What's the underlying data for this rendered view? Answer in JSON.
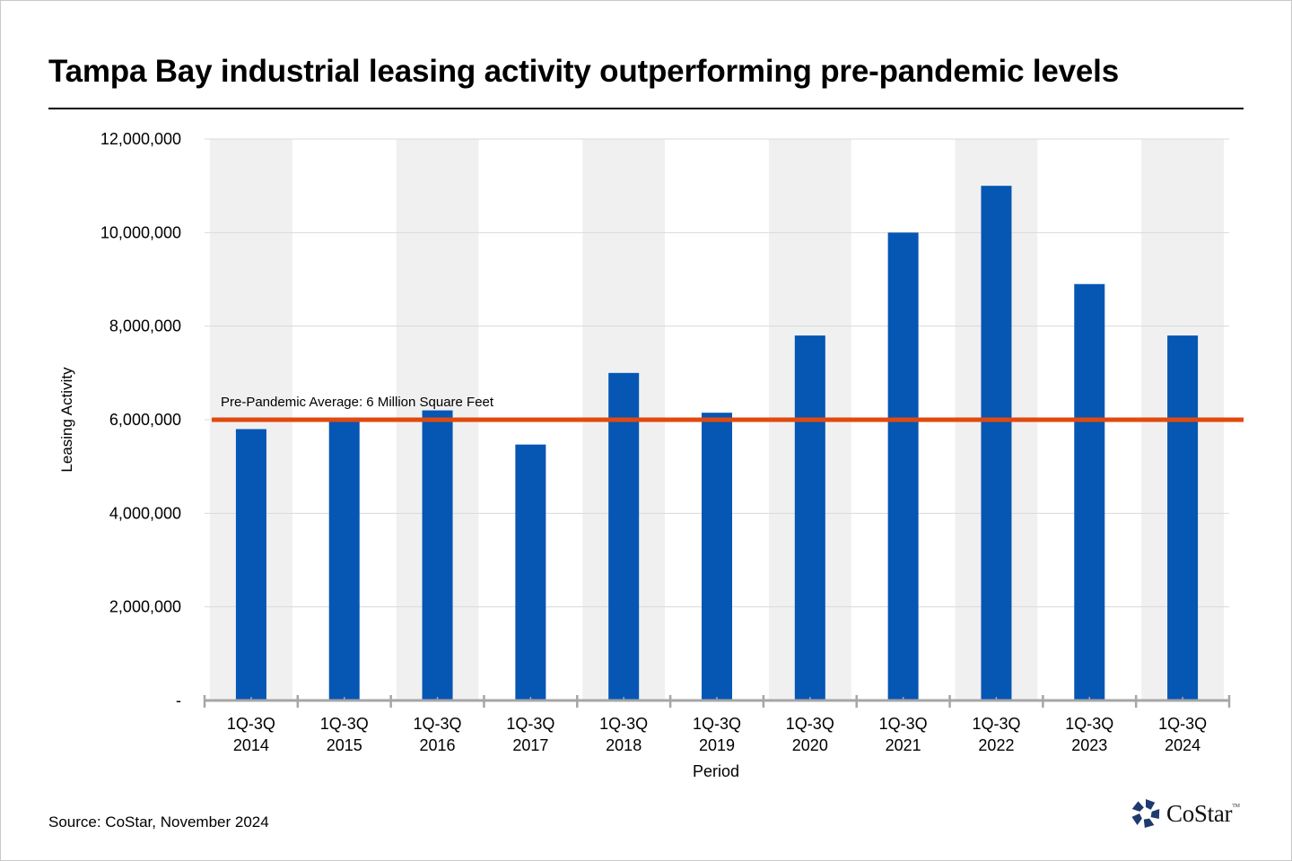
{
  "title": "Tampa Bay industrial leasing activity outperforming pre-pandemic levels",
  "source": "Source: CoStar, November 2024",
  "logo": {
    "name": "CoStar",
    "tm": "TM",
    "icon": "costar-star-icon",
    "color": "#1f3a6e"
  },
  "colors": {
    "bar": "#0656b4",
    "reference_line": "#e04a0f",
    "band": "#f0f0f0",
    "gridline": "#d9d9d9",
    "axis": "#a6a6a6"
  },
  "chart_data": {
    "type": "bar",
    "title": "Tampa Bay industrial leasing activity outperforming pre-pandemic levels",
    "xlabel": "Period",
    "ylabel": "Leasing Activity",
    "categories": [
      [
        "1Q-3Q",
        "2014"
      ],
      [
        "1Q-3Q",
        "2015"
      ],
      [
        "1Q-3Q",
        "2016"
      ],
      [
        "1Q-3Q",
        "2017"
      ],
      [
        "1Q-3Q",
        "2018"
      ],
      [
        "1Q-3Q",
        "2019"
      ],
      [
        "1Q-3Q",
        "2020"
      ],
      [
        "1Q-3Q",
        "2021"
      ],
      [
        "1Q-3Q",
        "2022"
      ],
      [
        "1Q-3Q",
        "2023"
      ],
      [
        "1Q-3Q",
        "2024"
      ]
    ],
    "series": [
      {
        "name": "Leasing Activity",
        "values": [
          5800000,
          6000000,
          6200000,
          5470000,
          7000000,
          6150000,
          7800000,
          10000000,
          11000000,
          8900000,
          7800000
        ]
      }
    ],
    "ylim": [
      0,
      12000000
    ],
    "yticks": [
      0,
      2000000,
      4000000,
      6000000,
      8000000,
      10000000,
      12000000
    ],
    "ytick_labels": [
      "-",
      "2,000,000",
      "4,000,000",
      "6,000,000",
      "8,000,000",
      "10,000,000",
      "12,000,000"
    ],
    "grid": true,
    "alternating_bands": true,
    "reference_line": {
      "value": 6000000,
      "label": "Pre-Pandemic Average: 6 Million Square Feet"
    },
    "legend": "none"
  }
}
